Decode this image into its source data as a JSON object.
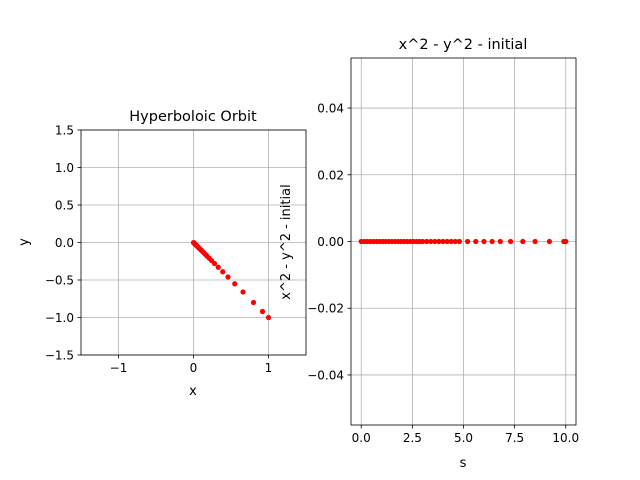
{
  "chart_data": [
    {
      "type": "scatter",
      "title": "Hyperboloic Orbit",
      "xlabel": "x",
      "ylabel": "y",
      "xlim": [
        -1.5,
        1.5
      ],
      "ylim": [
        -1.5,
        1.5
      ],
      "xticks": [
        -1,
        0,
        1
      ],
      "xtick_labels": [
        "−1",
        "0",
        "1"
      ],
      "yticks": [
        -1.5,
        -1.0,
        -0.5,
        0.0,
        0.5,
        1.0,
        1.5
      ],
      "ytick_labels": [
        "−1.5",
        "−1.0",
        "−0.5",
        "0.0",
        "0.5",
        "1.0",
        "1.5"
      ],
      "grid": true,
      "marker_color": "#ff0000",
      "series": [
        {
          "x": [
            1.0,
            0.92,
            0.8,
            0.66,
            0.55,
            0.46,
            0.39,
            0.33,
            0.28,
            0.24,
            0.21,
            0.18,
            0.16,
            0.14,
            0.12,
            0.1,
            0.085,
            0.07,
            0.058,
            0.047,
            0.038,
            0.03,
            0.023,
            0.017,
            0.012,
            0.008,
            0.005,
            0.003,
            0.001
          ],
          "y": [
            -1.0,
            -0.92,
            -0.8,
            -0.66,
            -0.55,
            -0.46,
            -0.39,
            -0.33,
            -0.28,
            -0.24,
            -0.21,
            -0.18,
            -0.16,
            -0.14,
            -0.12,
            -0.1,
            -0.085,
            -0.07,
            -0.058,
            -0.047,
            -0.038,
            -0.03,
            -0.023,
            -0.017,
            -0.012,
            -0.008,
            -0.005,
            -0.003,
            -0.001
          ]
        }
      ]
    },
    {
      "type": "scatter",
      "title": "x^2 - y^2 - initial",
      "xlabel": "s",
      "ylabel": "x^2 - y^2 - initial",
      "xlim": [
        -0.5,
        10.5
      ],
      "ylim": [
        -0.055,
        0.055
      ],
      "xticks": [
        0.0,
        2.5,
        5.0,
        7.5,
        10.0
      ],
      "xtick_labels": [
        "0.0",
        "2.5",
        "5.0",
        "7.5",
        "10.0"
      ],
      "yticks": [
        -0.04,
        -0.02,
        0.0,
        0.02,
        0.04
      ],
      "ytick_labels": [
        "−0.04",
        "−0.02",
        "0.00",
        "0.02",
        "0.04"
      ],
      "grid": true,
      "marker_color": "#ff0000",
      "series": [
        {
          "x": [
            0.0,
            0.15,
            0.3,
            0.45,
            0.6,
            0.75,
            0.9,
            1.05,
            1.2,
            1.35,
            1.5,
            1.65,
            1.8,
            1.95,
            2.1,
            2.25,
            2.4,
            2.55,
            2.7,
            2.85,
            3.0,
            3.2,
            3.4,
            3.6,
            3.8,
            4.0,
            4.2,
            4.4,
            4.6,
            4.8,
            5.2,
            5.6,
            6.0,
            6.4,
            6.8,
            7.3,
            7.9,
            8.5,
            9.2,
            9.9,
            10.0
          ],
          "y": [
            0,
            0,
            0,
            0,
            0,
            0,
            0,
            0,
            0,
            0,
            0,
            0,
            0,
            0,
            0,
            0,
            0,
            0,
            0,
            0,
            0,
            0,
            0,
            0,
            0,
            0,
            0,
            0,
            0,
            0,
            0,
            0,
            0,
            0,
            0,
            0,
            0,
            0,
            0,
            0,
            0
          ]
        }
      ]
    }
  ]
}
